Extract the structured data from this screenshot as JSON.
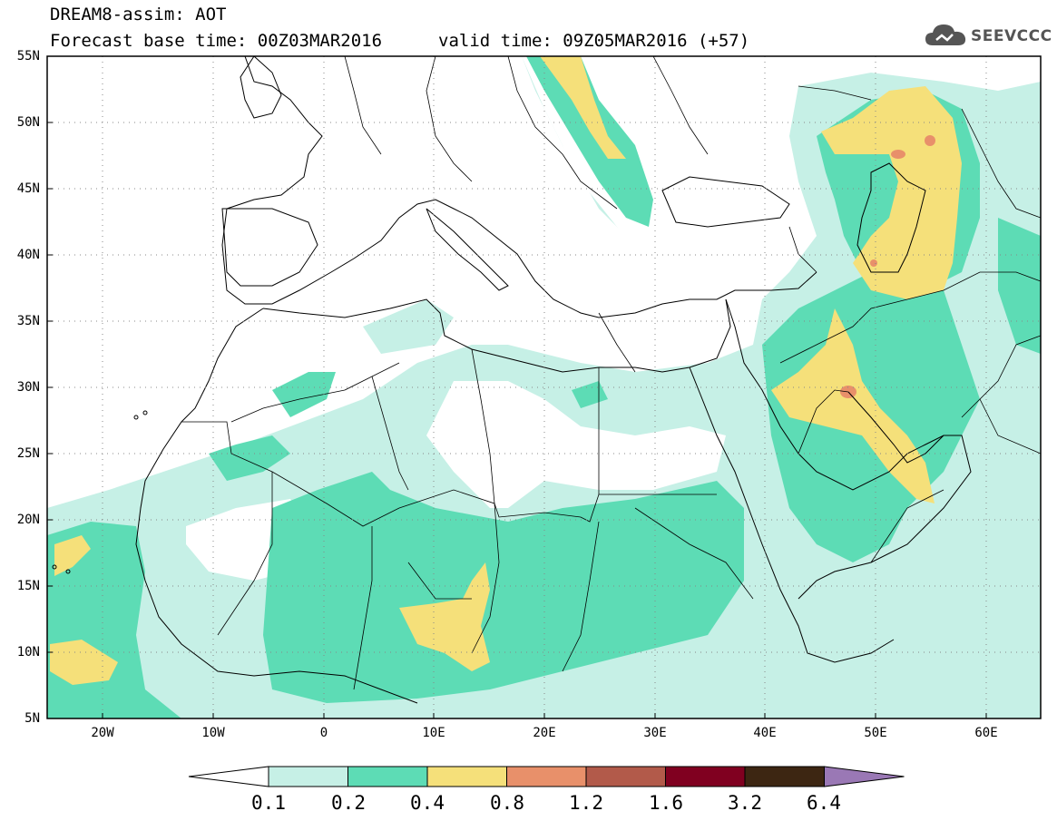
{
  "header": {
    "line1": "DREAM8-assim: AOT",
    "line2_left": "Forecast base time: 00Z03MAR2016",
    "line2_right": "valid time: 09Z05MAR2016 (+57)"
  },
  "logo": {
    "text": "SEEVCCC",
    "icon": "cloud-icon"
  },
  "map": {
    "lon_range": [
      -25,
      65
    ],
    "lat_range": [
      5,
      55
    ],
    "y_labels": [
      "55N",
      "50N",
      "45N",
      "40N",
      "35N",
      "30N",
      "25N",
      "20N",
      "15N",
      "10N",
      "5N"
    ],
    "x_labels": [
      "20W",
      "10W",
      "0",
      "10E",
      "20E",
      "30E",
      "40E",
      "50E",
      "60E"
    ],
    "grid": "dotted"
  },
  "colorbar": {
    "labels": [
      "0.1",
      "0.2",
      "0.4",
      "0.8",
      "1.2",
      "1.6",
      "3.2",
      "6.4"
    ],
    "colors": [
      "#ffffff",
      "#c6f0e6",
      "#5ddcb5",
      "#f5e07a",
      "#e8906a",
      "#b25a4a",
      "#800020",
      "#3d2612",
      "#9a78b5"
    ]
  }
}
